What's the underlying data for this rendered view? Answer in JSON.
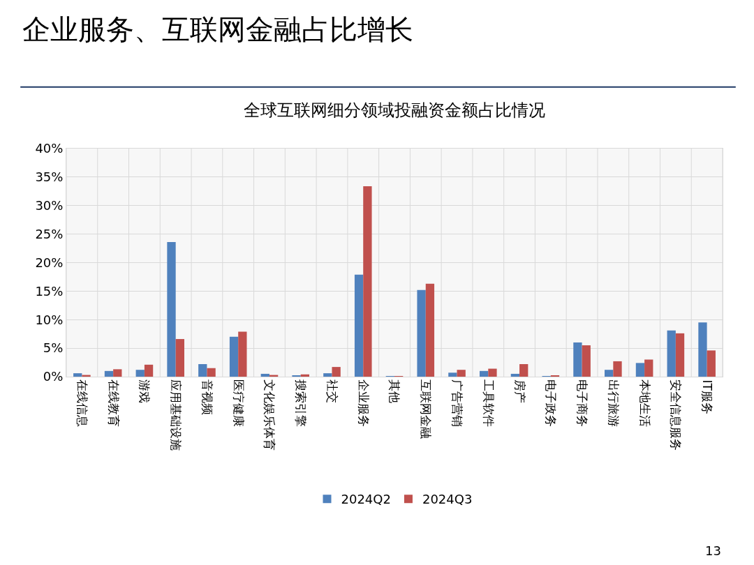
{
  "chart_data": {
    "type": "bar",
    "title": "企业服务、互联网金融占比增长",
    "subtitle": "全球互联网细分领域投融资金额占比情况",
    "categories": [
      "在线信息",
      "在线教育",
      "游戏",
      "应用基础设施",
      "音视频",
      "医疗健康",
      "文化娱乐体育",
      "搜索引擎",
      "社交",
      "企业服务",
      "其他",
      "互联网金融",
      "广告营销",
      "工具软件",
      "房产",
      "电子政务",
      "电子商务",
      "出行旅游",
      "本地生活",
      "安全信息服务",
      "IT服务"
    ],
    "series": [
      {
        "name": "2024Q2",
        "color": "#4f81bd",
        "values": [
          0.6,
          1.0,
          1.2,
          23.6,
          2.2,
          7.0,
          0.5,
          0.2,
          0.6,
          17.9,
          0.1,
          15.2,
          0.7,
          1.0,
          0.5,
          0.1,
          6.0,
          1.2,
          2.4,
          8.1,
          9.5
        ]
      },
      {
        "name": "2024Q3",
        "color": "#c0504d",
        "values": [
          0.3,
          1.3,
          2.1,
          6.6,
          1.5,
          7.9,
          0.3,
          0.4,
          1.7,
          33.4,
          0.1,
          16.3,
          1.2,
          1.4,
          2.2,
          0.2,
          5.5,
          2.7,
          3.0,
          7.6,
          4.6
        ]
      }
    ],
    "ylim": [
      0,
      40
    ],
    "yticks": [
      {
        "value": 0,
        "label": "0%"
      },
      {
        "value": 5,
        "label": "5%"
      },
      {
        "value": 10,
        "label": "10%"
      },
      {
        "value": 15,
        "label": "15%"
      },
      {
        "value": 20,
        "label": "20%"
      },
      {
        "value": 25,
        "label": "25%"
      },
      {
        "value": 30,
        "label": "30%"
      },
      {
        "value": 35,
        "label": "35%"
      },
      {
        "value": 40,
        "label": "40%"
      }
    ],
    "grid": true,
    "legend": "bottom",
    "annotations": [
      "13"
    ]
  }
}
